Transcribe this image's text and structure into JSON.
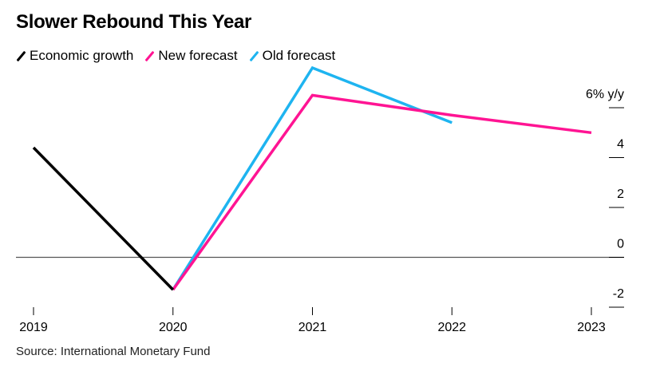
{
  "title": "Slower Rebound This Year",
  "source": "Source: International Monetary Fund",
  "chart_data": {
    "type": "line",
    "title": "Slower Rebound This Year",
    "xlabel": "",
    "ylabel": "",
    "x": [
      "2019",
      "2020",
      "2021",
      "2022",
      "2023"
    ],
    "xlim": [
      "2019",
      "2023"
    ],
    "ylim": [
      -2,
      6
    ],
    "y_unit_label": "6% y/y",
    "y_ticks": [
      {
        "value": 6,
        "label": "6% y/y"
      },
      {
        "value": 4,
        "label": "4"
      },
      {
        "value": 2,
        "label": "2"
      },
      {
        "value": 0,
        "label": "0"
      },
      {
        "value": -2,
        "label": "-2"
      }
    ],
    "x_ticks": [
      "2019",
      "2020",
      "2021",
      "2022",
      "2023"
    ],
    "grid": false,
    "zero_line": true,
    "legend_position": "top-left",
    "series": [
      {
        "name": "Economic growth",
        "color": "#000000",
        "points": [
          {
            "x": "2019",
            "y": 4.4
          },
          {
            "x": "2020",
            "y": -1.3
          }
        ]
      },
      {
        "name": "New forecast",
        "color": "#ff1493",
        "points": [
          {
            "x": "2020",
            "y": -1.3
          },
          {
            "x": "2021",
            "y": 6.5
          },
          {
            "x": "2022",
            "y": 5.7
          },
          {
            "x": "2023",
            "y": 5.0
          }
        ]
      },
      {
        "name": "Old forecast",
        "color": "#1eb4f0",
        "points": [
          {
            "x": "2020",
            "y": -1.3
          },
          {
            "x": "2021",
            "y": 7.6
          },
          {
            "x": "2022",
            "y": 5.4
          }
        ]
      }
    ]
  }
}
